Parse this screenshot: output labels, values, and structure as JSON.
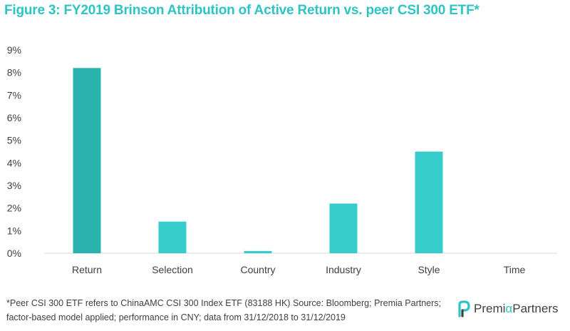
{
  "title": "Figure 3: FY2019 Brinson Attribution of Active Return vs. peer CSI 300 ETF*",
  "footnote": "*Peer CSI 300 ETF refers to ChinaAMC CSI 300 Index ETF (83188 HK) Source: Bloomberg; Premia Partners; factor-based model applied; performance in CNY; data from 31/12/2018 to 31/12/2019",
  "logo": {
    "part1": "Premi",
    "alpha": "α",
    "part2": " Partners"
  },
  "colors": {
    "title": "#2ec4c4",
    "bar_first": "#2ab3ae",
    "bar": "#36cccc",
    "axis": "#d9d9d9",
    "text": "#404040"
  },
  "chart_data": {
    "type": "bar",
    "categories": [
      "Return",
      "Selection",
      "Country",
      "Industry",
      "Style",
      "Time"
    ],
    "values": [
      8.2,
      1.4,
      0.1,
      2.2,
      4.5,
      0.0
    ],
    "ylim": [
      0,
      9
    ],
    "yticks": [
      "0%",
      "1%",
      "2%",
      "3%",
      "4%",
      "5%",
      "6%",
      "7%",
      "8%",
      "9%"
    ],
    "unit": "%",
    "grid": false
  }
}
